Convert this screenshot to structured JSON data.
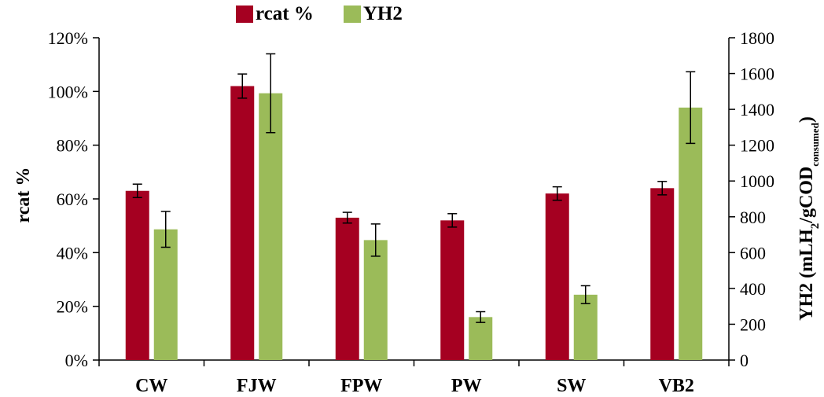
{
  "chart_data": {
    "type": "bar",
    "categories": [
      "CW",
      "FJW",
      "FPW",
      "PW",
      "SW",
      "VB2"
    ],
    "series": [
      {
        "name": "rcat %",
        "axis": "left",
        "color": "#A50021",
        "values": [
          0.63,
          1.02,
          0.53,
          0.52,
          0.62,
          0.64
        ],
        "error": [
          0.025,
          0.045,
          0.02,
          0.025,
          0.025,
          0.025
        ]
      },
      {
        "name": "YH2",
        "axis": "right",
        "color": "#9BBB59",
        "values": [
          730,
          1490,
          670,
          240,
          365,
          1410
        ],
        "error": [
          100,
          220,
          90,
          30,
          50,
          200
        ]
      }
    ],
    "y_left": {
      "label": "rcat  %",
      "ylim": [
        0,
        1.2
      ],
      "ticks": [
        0,
        0.2,
        0.4,
        0.6,
        0.8,
        1.0,
        1.2
      ],
      "tick_labels": [
        "0%",
        "20%",
        "40%",
        "60%",
        "80%",
        "100%",
        "120%"
      ]
    },
    "y_right": {
      "label_main": "YH2 (mLH",
      "label_sub1": "2",
      "label_mid": "/gCOD",
      "label_sub2": "consumed",
      "label_end": ")",
      "ylim": [
        0,
        1800
      ],
      "ticks": [
        0,
        200,
        400,
        600,
        800,
        1000,
        1200,
        1400,
        1600,
        1800
      ],
      "tick_labels": [
        "0",
        "200",
        "400",
        "600",
        "800",
        "1000",
        "1200",
        "1400",
        "1600",
        "1800"
      ]
    },
    "legend_position": "top-center",
    "grid": false
  }
}
